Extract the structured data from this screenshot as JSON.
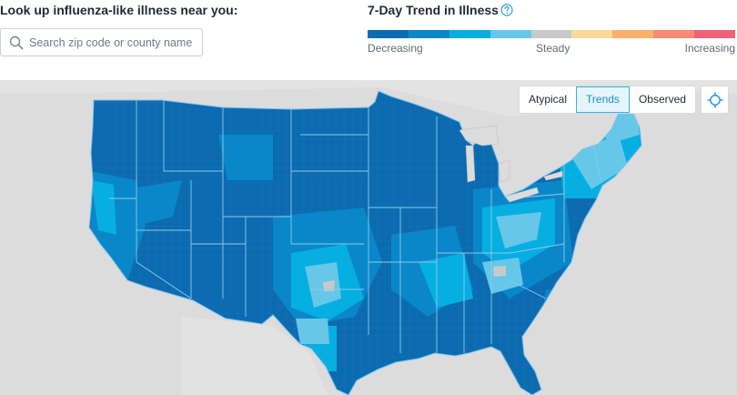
{
  "lookup": {
    "title": "Look up influenza-like illness near you:",
    "search_placeholder": "Search zip code or county name",
    "search_icon": "search-icon"
  },
  "trend": {
    "title": "7-Day Trend in Illness",
    "help_icon": "question-circle-icon",
    "legend_colors": [
      "#0c6bb0",
      "#0a87c8",
      "#07aee1",
      "#66c7e8",
      "#c9c9c9",
      "#fcd998",
      "#fbb16a",
      "#f88b78",
      "#f06278"
    ],
    "label_decreasing": "Decreasing",
    "label_steady": "Steady",
    "label_increasing": "Increasing"
  },
  "view_toggle": {
    "options": [
      "Atypical",
      "Trends",
      "Observed"
    ],
    "selected": "Trends",
    "locate_icon": "crosshair-icon"
  },
  "map": {
    "background_color": "#dcdcdc",
    "region_colors": {
      "decreasing_strong": "#0c6bb0",
      "decreasing": "#0a87c8",
      "decreasing_mild": "#07aee1",
      "decreasing_slight": "#66c7e8",
      "steady": "#c9c9c9"
    }
  }
}
